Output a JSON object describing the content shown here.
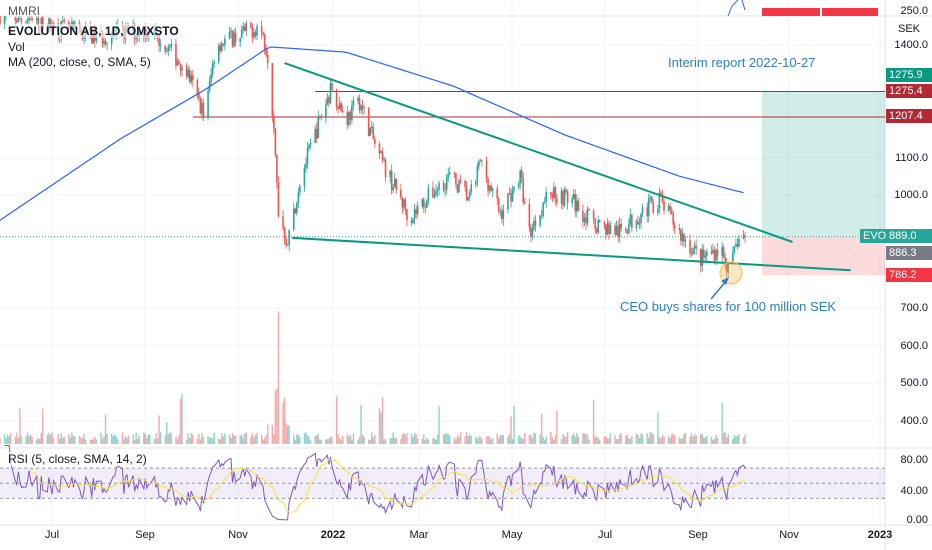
{
  "chart_data": {
    "type": "candlestick",
    "symbol": "EVOLUTION AB, 1D, OMXSTO",
    "currency": "SEK",
    "top_pane": {
      "label": "MMRI",
      "axis_label": "250.0"
    },
    "indicators": {
      "vol_label": "Vol",
      "ma_label": "MA (200, close, 0, SMA, 5)",
      "rsi_label": "RSI (5, close, SMA, 14, 2)"
    },
    "price_axis_ticks": [
      "1400.0",
      "1100.0",
      "1000.0",
      "700.0",
      "600.0",
      "500.0",
      "400.0"
    ],
    "rsi_axis_ticks": [
      "80.00",
      "40.00",
      "0.00"
    ],
    "x_ticks": [
      "Jul",
      "Sep",
      "Nov",
      "2022",
      "Mar",
      "May",
      "Jul",
      "Sep",
      "Nov",
      "2023"
    ],
    "price_path": [
      [
        "2021-05-28",
        1480
      ],
      [
        "2021-08-01",
        1420
      ],
      [
        "2021-09-03",
        1440
      ],
      [
        "2021-09-26",
        1340
      ],
      [
        "2021-10-09",
        1210
      ],
      [
        "2021-10-16",
        1400
      ],
      [
        "2021-11-14",
        1450
      ],
      [
        "2021-11-20",
        1360
      ],
      [
        "2021-11-26",
        960
      ],
      [
        "2021-12-02",
        870
      ],
      [
        "2021-12-10",
        1040
      ],
      [
        "2021-12-23",
        1200
      ],
      [
        "2021-12-31",
        1290
      ],
      [
        "2022-01-09",
        1200
      ],
      [
        "2022-01-18",
        1250
      ],
      [
        "2022-01-31",
        1100
      ],
      [
        "2022-02-20",
        940
      ],
      [
        "2022-03-05",
        1000
      ],
      [
        "2022-03-18",
        1050
      ],
      [
        "2022-03-31",
        990
      ],
      [
        "2022-04-07",
        1090
      ],
      [
        "2022-04-20",
        950
      ],
      [
        "2022-05-03",
        1050
      ],
      [
        "2022-05-09",
        900
      ],
      [
        "2022-05-22",
        1010
      ],
      [
        "2022-06-05",
        990
      ],
      [
        "2022-06-18",
        930
      ],
      [
        "2022-07-07",
        900
      ],
      [
        "2022-07-20",
        950
      ],
      [
        "2022-08-02",
        990
      ],
      [
        "2022-08-15",
        900
      ],
      [
        "2022-08-29",
        830
      ],
      [
        "2022-09-11",
        860
      ],
      [
        "2022-09-17",
        790
      ],
      [
        "2022-09-22",
        880
      ],
      [
        "2022-09-27",
        889
      ]
    ],
    "ma200": [
      [
        "2021-05-28",
        933
      ],
      [
        "2021-08-15",
        1150
      ],
      [
        "2021-10-09",
        1280
      ],
      [
        "2021-11-20",
        1394
      ],
      [
        "2022-01-09",
        1380
      ],
      [
        "2022-03-20",
        1290
      ],
      [
        "2022-06-01",
        1160
      ],
      [
        "2022-08-15",
        1050
      ],
      [
        "2022-09-27",
        1005
      ]
    ],
    "trendlines": [
      {
        "from": [
          "2021-11-30",
          1351
        ],
        "to": [
          "2022-10-28",
          875
        ],
        "color": "#089981"
      },
      {
        "from": [
          "2021-12-05",
          886
        ],
        "to": [
          "2022-12-05",
          800
        ],
        "color": "#089981"
      }
    ],
    "horizontal_lines": [
      {
        "from": "2021-12-20",
        "price": 1275.4,
        "label": "1275.4"
      },
      {
        "from": "2021-10-01",
        "price": 1207.4,
        "label": "1207.4"
      }
    ],
    "long_position": {
      "from": "2022-10-08",
      "entry": 889.0,
      "target": 1275.9,
      "stop": 786.2
    },
    "price_tags": {
      "target": "1275.9",
      "resistance1": "1275.4",
      "resistance2": "1207.4",
      "symbol": "EVO",
      "last": "889.0",
      "prev": "886.3",
      "stop": "786.2"
    },
    "annotations": {
      "interim": "Interim report 2022-10-27",
      "ceo": "CEO buys shares for 100 million SEK"
    },
    "rsi_levels": [
      70,
      50,
      30
    ],
    "colors": {
      "up": "#26a69a",
      "down": "#ef5350",
      "ma": "#2962ff",
      "rsi": "#7e57c2",
      "rsi_sma": "#f5e33a",
      "note": "#2f7fc1",
      "resistance": "#b22833"
    }
  }
}
